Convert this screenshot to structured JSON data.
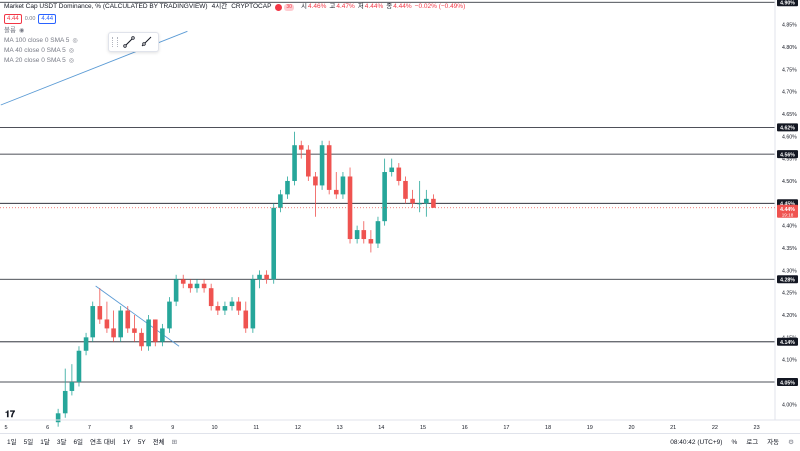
{
  "header": {
    "title": "Market Cap USDT Dominance, % (CALCULATED BY TRADINGVIEW)",
    "interval": "4시간",
    "source": "CRYPTOCAP",
    "ohlc": [
      {
        "label": "시",
        "value": "4.46%"
      },
      {
        "label": "고",
        "value": "4.47%"
      },
      {
        "label": "저",
        "value": "4.44%"
      },
      {
        "label": "종",
        "value": "4.44%"
      }
    ],
    "change": "−0.02% (−0.49%)",
    "sell_price": "4.44",
    "spread": "0.00",
    "buy_price": "4.44"
  },
  "legend": {
    "volume_label": "볼륨",
    "indicators": [
      "MA 100 close 0 SMA 5",
      "MA 40 close 0 SMA 5",
      "MA 20 close 0 SMA 5"
    ]
  },
  "bottom_bar": {
    "ranges": [
      "1일",
      "5일",
      "1달",
      "3달",
      "6일",
      "연초 대비",
      "1Y",
      "5Y",
      "전체"
    ],
    "clock": "08:40:42 (UTC+9)",
    "percent_label": "%",
    "log_label": "로그",
    "auto_label": "자동"
  },
  "colors": {
    "up": "#26a69a",
    "down": "#ef5350",
    "trendline": "#5b9bd5",
    "hline": "#131722",
    "current_price_bg": "#ef5350"
  },
  "chart_data": {
    "type": "candlestick",
    "xlabel": "",
    "ylabel": "",
    "ylim": [
      3.965,
      4.905
    ],
    "x_ticks": [
      "5",
      "6",
      "7",
      "8",
      "9",
      "10",
      "11",
      "12",
      "13",
      "14",
      "15",
      "16",
      "17",
      "18",
      "19",
      "20",
      "21",
      "22",
      "23"
    ],
    "y_ticks": [
      "4.90%",
      "4.85%",
      "4.80%",
      "4.75%",
      "4.70%",
      "4.65%",
      "4.60%",
      "4.55%",
      "4.50%",
      "4.45%",
      "4.40%",
      "4.35%",
      "4.30%",
      "4.25%",
      "4.20%",
      "4.15%",
      "4.10%",
      "4.05%",
      "4.00%"
    ],
    "horizontal_levels": [
      {
        "label": "4.90%",
        "value": 4.9
      },
      {
        "label": "4.62%",
        "value": 4.62
      },
      {
        "label": "4.56%",
        "value": 4.56
      },
      {
        "label": "4.45%",
        "value": 4.45
      },
      {
        "label": "4.28%",
        "value": 4.28
      },
      {
        "label": "4.14%",
        "value": 4.14
      },
      {
        "label": "4.05%",
        "value": 4.05
      }
    ],
    "current_price": {
      "label": "4.44%",
      "countdown": "19:18",
      "value": 4.44
    },
    "trendlines": [
      {
        "from": [
          4.875,
          4.67
        ],
        "to": [
          9.35,
          4.835
        ]
      },
      {
        "from": [
          7.15,
          4.265
        ],
        "to": [
          9.15,
          4.13
        ]
      }
    ],
    "candles": [
      {
        "day": 6.25,
        "o": 3.96,
        "h": 3.99,
        "l": 3.95,
        "c": 3.98
      },
      {
        "day": 6.42,
        "o": 3.98,
        "h": 4.08,
        "l": 3.97,
        "c": 4.03
      },
      {
        "day": 6.58,
        "o": 4.03,
        "h": 4.09,
        "l": 4.02,
        "c": 4.05
      },
      {
        "day": 6.75,
        "o": 4.05,
        "h": 4.13,
        "l": 4.04,
        "c": 4.12
      },
      {
        "day": 6.92,
        "o": 4.12,
        "h": 4.16,
        "l": 4.11,
        "c": 4.15
      },
      {
        "day": 7.08,
        "o": 4.15,
        "h": 4.23,
        "l": 4.14,
        "c": 4.22
      },
      {
        "day": 7.25,
        "o": 4.22,
        "h": 4.26,
        "l": 4.18,
        "c": 4.19
      },
      {
        "day": 7.42,
        "o": 4.19,
        "h": 4.23,
        "l": 4.16,
        "c": 4.17
      },
      {
        "day": 7.58,
        "o": 4.17,
        "h": 4.21,
        "l": 4.14,
        "c": 4.15
      },
      {
        "day": 7.75,
        "o": 4.15,
        "h": 4.22,
        "l": 4.14,
        "c": 4.21
      },
      {
        "day": 7.92,
        "o": 4.21,
        "h": 4.22,
        "l": 4.16,
        "c": 4.17
      },
      {
        "day": 8.08,
        "o": 4.17,
        "h": 4.2,
        "l": 4.14,
        "c": 4.16
      },
      {
        "day": 8.25,
        "o": 4.16,
        "h": 4.17,
        "l": 4.12,
        "c": 4.13
      },
      {
        "day": 8.42,
        "o": 4.13,
        "h": 4.2,
        "l": 4.12,
        "c": 4.19
      },
      {
        "day": 8.58,
        "o": 4.19,
        "h": 4.19,
        "l": 4.13,
        "c": 4.14
      },
      {
        "day": 8.75,
        "o": 4.14,
        "h": 4.18,
        "l": 4.13,
        "c": 4.17
      },
      {
        "day": 8.92,
        "o": 4.17,
        "h": 4.24,
        "l": 4.16,
        "c": 4.23
      },
      {
        "day": 9.08,
        "o": 4.23,
        "h": 4.29,
        "l": 4.22,
        "c": 4.28
      },
      {
        "day": 9.25,
        "o": 4.28,
        "h": 4.29,
        "l": 4.26,
        "c": 4.27
      },
      {
        "day": 9.42,
        "o": 4.27,
        "h": 4.28,
        "l": 4.25,
        "c": 4.26
      },
      {
        "day": 9.58,
        "o": 4.26,
        "h": 4.28,
        "l": 4.25,
        "c": 4.27
      },
      {
        "day": 9.75,
        "o": 4.27,
        "h": 4.28,
        "l": 4.25,
        "c": 4.26
      },
      {
        "day": 9.92,
        "o": 4.26,
        "h": 4.27,
        "l": 4.21,
        "c": 4.22
      },
      {
        "day": 10.08,
        "o": 4.22,
        "h": 4.23,
        "l": 4.2,
        "c": 4.21
      },
      {
        "day": 10.25,
        "o": 4.21,
        "h": 4.23,
        "l": 4.2,
        "c": 4.22
      },
      {
        "day": 10.42,
        "o": 4.22,
        "h": 4.24,
        "l": 4.21,
        "c": 4.23
      },
      {
        "day": 10.58,
        "o": 4.23,
        "h": 4.24,
        "l": 4.2,
        "c": 4.21
      },
      {
        "day": 10.75,
        "o": 4.21,
        "h": 4.23,
        "l": 4.16,
        "c": 4.17
      },
      {
        "day": 10.92,
        "o": 4.17,
        "h": 4.29,
        "l": 4.16,
        "c": 4.28
      },
      {
        "day": 11.08,
        "o": 4.28,
        "h": 4.3,
        "l": 4.26,
        "c": 4.29
      },
      {
        "day": 11.25,
        "o": 4.29,
        "h": 4.3,
        "l": 4.27,
        "c": 4.28
      },
      {
        "day": 11.42,
        "o": 4.28,
        "h": 4.45,
        "l": 4.27,
        "c": 4.44
      },
      {
        "day": 11.58,
        "o": 4.44,
        "h": 4.48,
        "l": 4.43,
        "c": 4.47
      },
      {
        "day": 11.75,
        "o": 4.47,
        "h": 4.51,
        "l": 4.46,
        "c": 4.5
      },
      {
        "day": 11.92,
        "o": 4.5,
        "h": 4.61,
        "l": 4.49,
        "c": 4.58
      },
      {
        "day": 12.08,
        "o": 4.58,
        "h": 4.59,
        "l": 4.55,
        "c": 4.57
      },
      {
        "day": 12.25,
        "o": 4.57,
        "h": 4.58,
        "l": 4.5,
        "c": 4.51
      },
      {
        "day": 12.42,
        "o": 4.51,
        "h": 4.52,
        "l": 4.42,
        "c": 4.49
      },
      {
        "day": 12.58,
        "o": 4.49,
        "h": 4.59,
        "l": 4.48,
        "c": 4.58
      },
      {
        "day": 12.75,
        "o": 4.58,
        "h": 4.59,
        "l": 4.47,
        "c": 4.48
      },
      {
        "day": 12.92,
        "o": 4.48,
        "h": 4.52,
        "l": 4.46,
        "c": 4.47
      },
      {
        "day": 13.08,
        "o": 4.47,
        "h": 4.52,
        "l": 4.46,
        "c": 4.51
      },
      {
        "day": 13.25,
        "o": 4.51,
        "h": 4.53,
        "l": 4.36,
        "c": 4.37
      },
      {
        "day": 13.42,
        "o": 4.37,
        "h": 4.4,
        "l": 4.36,
        "c": 4.39
      },
      {
        "day": 13.58,
        "o": 4.39,
        "h": 4.41,
        "l": 4.36,
        "c": 4.37
      },
      {
        "day": 13.75,
        "o": 4.37,
        "h": 4.39,
        "l": 4.34,
        "c": 4.36
      },
      {
        "day": 13.92,
        "o": 4.36,
        "h": 4.42,
        "l": 4.35,
        "c": 4.41
      },
      {
        "day": 14.08,
        "o": 4.41,
        "h": 4.55,
        "l": 4.4,
        "c": 4.52
      },
      {
        "day": 14.25,
        "o": 4.52,
        "h": 4.55,
        "l": 4.51,
        "c": 4.53
      },
      {
        "day": 14.42,
        "o": 4.53,
        "h": 4.54,
        "l": 4.49,
        "c": 4.5
      },
      {
        "day": 14.58,
        "o": 4.5,
        "h": 4.51,
        "l": 4.45,
        "c": 4.46
      },
      {
        "day": 14.75,
        "o": 4.46,
        "h": 4.48,
        "l": 4.44,
        "c": 4.45
      },
      {
        "day": 14.92,
        "o": 4.45,
        "h": 4.5,
        "l": 4.43,
        "c": 4.45
      },
      {
        "day": 15.08,
        "o": 4.45,
        "h": 4.48,
        "l": 4.42,
        "c": 4.46
      },
      {
        "day": 15.25,
        "o": 4.46,
        "h": 4.47,
        "l": 4.44,
        "c": 4.44
      }
    ]
  }
}
